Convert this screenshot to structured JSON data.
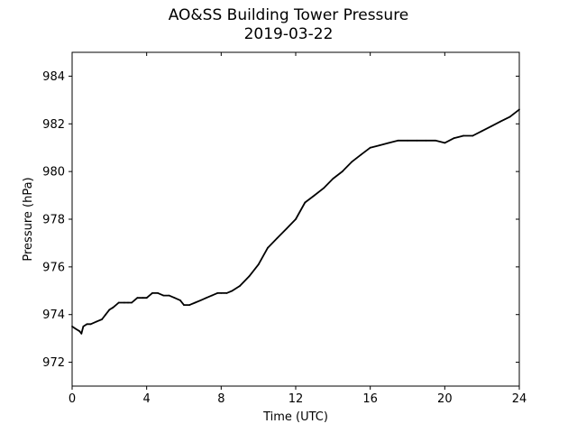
{
  "chart_data": {
    "type": "line",
    "title": "AO&SS Building Tower Pressure",
    "subtitle": "2019-03-22",
    "xlabel": "Time (UTC)",
    "ylabel": "Pressure (hPa)",
    "xlim": [
      0,
      24
    ],
    "ylim": [
      971,
      985
    ],
    "xticks": [
      0,
      4,
      8,
      12,
      16,
      20,
      24
    ],
    "yticks": [
      972,
      974,
      976,
      978,
      980,
      982,
      984
    ],
    "grid": false,
    "line_color": "#000000",
    "series": [
      {
        "x": [
          0,
          0.2,
          0.4,
          0.5,
          0.6,
          0.8,
          1.0,
          1.3,
          1.6,
          1.8,
          2.0,
          2.2,
          2.5,
          2.8,
          3.0,
          3.2,
          3.5,
          3.8,
          4.0,
          4.3,
          4.6,
          4.9,
          5.2,
          5.5,
          5.8,
          6.0,
          6.3,
          6.6,
          6.9,
          7.2,
          7.5,
          7.8,
          8.0,
          8.3,
          8.6,
          9.0,
          9.5,
          10.0,
          10.5,
          11.0,
          11.5,
          12.0,
          12.5,
          13.0,
          13.5,
          14.0,
          14.5,
          15.0,
          15.5,
          16.0,
          16.5,
          17.0,
          17.5,
          18.0,
          18.5,
          19.0,
          19.5,
          20.0,
          20.5,
          21.0,
          21.5,
          22.0,
          22.5,
          23.0,
          23.5,
          24.0
        ],
        "values": [
          973.5,
          973.4,
          973.3,
          973.2,
          973.5,
          973.6,
          973.6,
          973.7,
          973.8,
          974.0,
          974.2,
          974.3,
          974.5,
          974.5,
          974.5,
          974.5,
          974.7,
          974.7,
          974.7,
          974.9,
          974.9,
          974.8,
          974.8,
          974.7,
          974.6,
          974.4,
          974.4,
          974.5,
          974.6,
          974.7,
          974.8,
          974.9,
          974.9,
          974.9,
          975.0,
          975.2,
          975.6,
          976.1,
          976.8,
          977.2,
          977.6,
          978.0,
          978.7,
          979.0,
          979.3,
          979.7,
          980.0,
          980.4,
          980.7,
          981.0,
          981.1,
          981.2,
          981.3,
          981.3,
          981.3,
          981.3,
          981.3,
          981.2,
          981.4,
          981.5,
          981.5,
          981.7,
          981.9,
          982.1,
          982.3,
          982.6
        ]
      }
    ]
  }
}
